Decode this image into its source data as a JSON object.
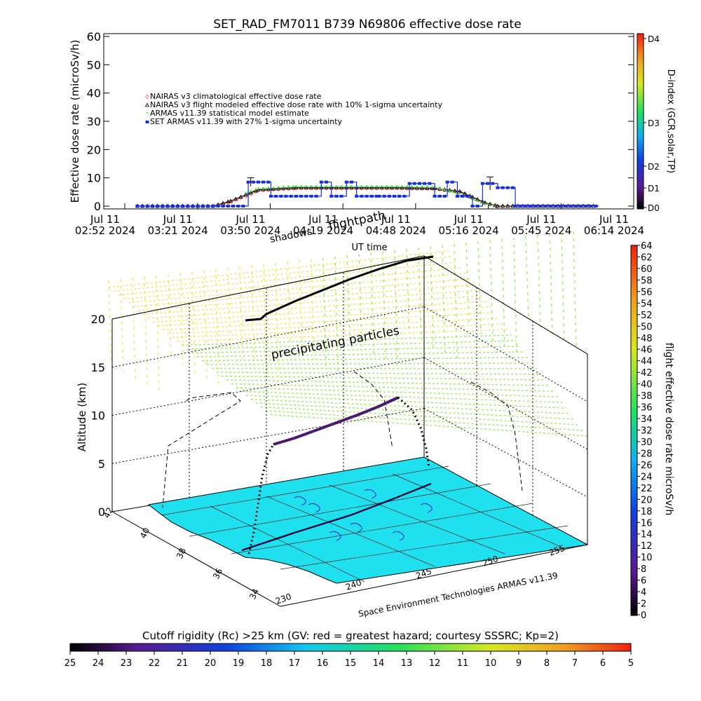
{
  "chart_data": [
    {
      "type": "line",
      "title": "SET_RAD_FM7011   B739 N69806 effective dose rate",
      "ylabel": "Effective dose rate (microSv/h)",
      "xlabel": "UT time",
      "ylim": [
        0,
        60
      ],
      "yticks": [
        0,
        10,
        20,
        30,
        40,
        50,
        60
      ],
      "xlim": [
        "02:52",
        "06:14"
      ],
      "xticks": [
        {
          "top": "Jul 11",
          "bottom": "02:52 2024"
        },
        {
          "top": "Jul 11",
          "bottom": "03:21 2024"
        },
        {
          "top": "Jul 11",
          "bottom": "03:50 2024"
        },
        {
          "top": "Jul 11",
          "bottom": "04:19 2024"
        },
        {
          "top": "Jul 11",
          "bottom": "04:48 2024"
        },
        {
          "top": "Jul 11",
          "bottom": "05:16 2024"
        },
        {
          "top": "Jul 11",
          "bottom": "05:45 2024"
        },
        {
          "top": "Jul 11",
          "bottom": "06:14 2024"
        }
      ],
      "legend_position": "upper-left",
      "series": [
        {
          "name": "NAIRAS v3 climatological effective dose rate",
          "color": "#ff6060",
          "marker": "diamond",
          "x": [
            "02:57",
            "03:27",
            "03:34",
            "03:40",
            "03:45",
            "04:00",
            "04:20",
            "04:40",
            "04:55",
            "05:05",
            "05:10",
            "05:15",
            "05:20",
            "06:00"
          ],
          "values": [
            0,
            0,
            1.5,
            3.5,
            5.5,
            6.3,
            6.3,
            6.3,
            6.1,
            5.0,
            3.0,
            1.0,
            0,
            0
          ]
        },
        {
          "name": "NAIRAS v3 flight modeled effective dose rate with 10% 1-sigma uncertainty",
          "color": "#000000",
          "marker": "triangle",
          "x": [
            "02:57",
            "03:27",
            "03:34",
            "03:40",
            "03:45",
            "04:00",
            "04:20",
            "04:40",
            "04:55",
            "05:05",
            "05:10",
            "05:15",
            "05:20",
            "06:00"
          ],
          "values": [
            0,
            0,
            1.8,
            4.0,
            5.8,
            6.5,
            6.5,
            6.5,
            6.3,
            5.2,
            3.2,
            1.2,
            0,
            0
          ]
        },
        {
          "name": "ARMAS v11.39 statistical model estimate",
          "color": "#44dd44",
          "marker": "star",
          "x": [
            "03:40",
            "03:45",
            "04:00",
            "04:20",
            "04:40",
            "04:55",
            "05:02",
            "05:08",
            "05:14",
            "05:19"
          ],
          "values": [
            4.5,
            6.0,
            6.8,
            6.8,
            6.8,
            6.6,
            5.0,
            3.0,
            1.0,
            0
          ]
        },
        {
          "name": "SET ARMAS v11.39 with 27% 1-sigma uncertainty",
          "color": "#1530e0",
          "marker": "square",
          "x": [
            "02:57",
            "03:35",
            "03:41",
            "03:45",
            "03:50",
            "04:04",
            "04:10",
            "04:14",
            "04:20",
            "04:24",
            "04:33",
            "04:45",
            "04:55",
            "05:00",
            "05:04",
            "05:10",
            "05:14",
            "05:20",
            "05:27",
            "06:00"
          ],
          "values": [
            0,
            0,
            8.5,
            8.5,
            3.5,
            3.5,
            8.5,
            3.5,
            8.5,
            3.5,
            3.5,
            8.0,
            3.5,
            8.5,
            3.5,
            0,
            8.0,
            6.5,
            0,
            0
          ],
          "error_bars": [
            {
              "x": "03:42",
              "value": 8.5,
              "err": 1.5
            },
            {
              "x": "05:17",
              "value": 8.0,
              "err": 2.3
            }
          ]
        }
      ],
      "colorbar": {
        "label": "D-index (GCR,solar,TP)",
        "ticks": [
          "D0",
          "D1",
          "D2",
          "D3",
          "D4"
        ]
      }
    },
    {
      "type": "3d-surface",
      "ylabel": "Altitude (km)",
      "zticks": [
        0,
        5,
        10,
        15,
        20
      ],
      "lat_ticks": [
        34,
        36,
        38,
        40,
        42
      ],
      "lon_ticks": [
        230,
        240,
        245,
        250,
        255
      ],
      "annotations": [
        "shadows",
        "flightpath",
        "precipitating particles"
      ],
      "footer": "Space Environment Technologies ARMAS v11.39",
      "colorbar": {
        "label": "flight effective dose rate microSv/h",
        "ticks": [
          0,
          2,
          4,
          6,
          8,
          10,
          12,
          14,
          16,
          18,
          20,
          22,
          24,
          26,
          28,
          30,
          32,
          34,
          36,
          38,
          40,
          42,
          44,
          46,
          48,
          50,
          52,
          54,
          56,
          58,
          60,
          62,
          64
        ]
      }
    },
    {
      "type": "colorbar",
      "title": "Cutoff rigidity (Rc) >25 km (GV: red = greatest hazard; courtesy SSSRC; Kp=2)",
      "ticks": [
        25,
        24,
        23,
        22,
        21,
        20,
        19,
        18,
        17,
        16,
        15,
        14,
        13,
        12,
        11,
        10,
        9,
        8,
        7,
        6,
        5
      ]
    }
  ],
  "colors": {
    "surface": "#1ee0ee",
    "flightpath": "#1c1c1c",
    "altitude_track": "#4a1a70",
    "precip_far": "#e8e860",
    "precip_near": "#9ee85a"
  }
}
